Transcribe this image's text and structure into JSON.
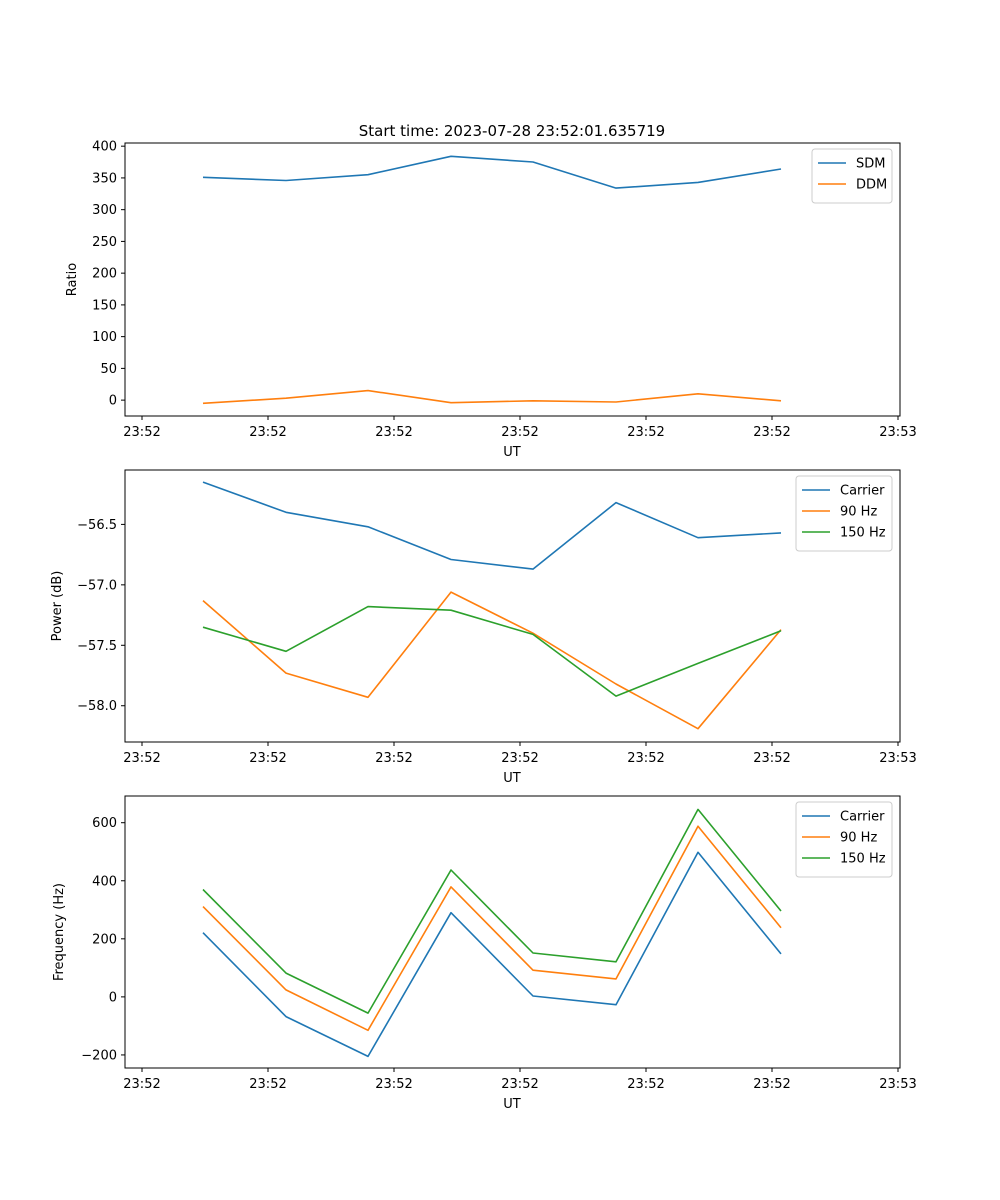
{
  "figure": {
    "title": "Start time: 2023-07-28 23:52:01.635719"
  },
  "colors": {
    "blue": "#1f77b4",
    "orange": "#ff7f0e",
    "green": "#2ca02c"
  },
  "chart_data": [
    {
      "type": "line",
      "xlabel": "UT",
      "ylabel": "Ratio",
      "x": [
        1,
        2,
        3,
        4,
        5,
        6,
        7,
        8
      ],
      "xlim": [
        0.8,
        9.02
      ],
      "x_ticks": [
        1.0,
        2.5,
        4.0,
        5.5,
        7.0,
        8.5,
        10.0
      ],
      "x_tick_positions": [
        0.8,
        2.55,
        4.05,
        5.55,
        7.05,
        8.55,
        9.0
      ],
      "x_tick_labels": [
        "23:52",
        "23:52",
        "23:52",
        "23:52",
        "23:52",
        "23:52",
        "23:53"
      ],
      "ylim": [
        -25,
        405
      ],
      "y_ticks": [
        0,
        50,
        100,
        150,
        200,
        250,
        300,
        350,
        400
      ],
      "y_tick_labels": [
        "0",
        "50",
        "100",
        "150",
        "200",
        "250",
        "300",
        "350",
        "400"
      ],
      "legend_position": "top-right",
      "series": [
        {
          "name": "SDM",
          "color": "#1f77b4",
          "values": [
            351,
            346,
            355,
            384,
            375,
            334,
            343,
            364
          ]
        },
        {
          "name": "DDM",
          "color": "#ff7f0e",
          "values": [
            -5,
            3,
            15,
            -4,
            -1,
            -3,
            10,
            -1
          ]
        }
      ]
    },
    {
      "type": "line",
      "xlabel": "UT",
      "ylabel": "Power (dB)",
      "x": [
        1,
        2,
        3,
        4,
        5,
        6,
        7,
        8
      ],
      "xlim": [
        0.8,
        9.02
      ],
      "x_ticks": [
        0.8,
        2.55,
        4.05,
        5.55,
        7.05,
        8.55,
        9.0
      ],
      "x_tick_labels": [
        "23:52",
        "23:52",
        "23:52",
        "23:52",
        "23:52",
        "23:52",
        "23:53"
      ],
      "ylim": [
        -58.3,
        -56.05
      ],
      "y_ticks": [
        -58.0,
        -57.5,
        -57.0,
        -56.5
      ],
      "y_tick_labels": [
        "−58.0",
        "−57.5",
        "−57.0",
        "−56.5"
      ],
      "legend_position": "top-right",
      "series": [
        {
          "name": "Carrier",
          "color": "#1f77b4",
          "values": [
            -56.15,
            -56.4,
            -56.52,
            -56.79,
            -56.87,
            -56.32,
            -56.61,
            -56.57
          ]
        },
        {
          "name": "90 Hz",
          "color": "#ff7f0e",
          "values": [
            -57.13,
            -57.73,
            -57.93,
            -57.06,
            -57.4,
            -57.82,
            -58.19,
            -57.37
          ]
        },
        {
          "name": "150 Hz",
          "color": "#2ca02c",
          "values": [
            -57.35,
            -57.55,
            -57.18,
            -57.21,
            -57.41,
            -57.92,
            -57.65,
            -57.38
          ]
        }
      ]
    },
    {
      "type": "line",
      "xlabel": "UT",
      "ylabel": "Frequency (Hz)",
      "x": [
        1,
        2,
        3,
        4,
        5,
        6,
        7,
        8
      ],
      "xlim": [
        0.8,
        9.02
      ],
      "x_ticks": [
        0.8,
        2.55,
        4.05,
        5.55,
        7.05,
        8.55,
        9.0
      ],
      "x_tick_labels": [
        "23:52",
        "23:52",
        "23:52",
        "23:52",
        "23:52",
        "23:52",
        "23:53"
      ],
      "ylim": [
        -245,
        692
      ],
      "y_ticks": [
        -200,
        0,
        200,
        400,
        600
      ],
      "y_tick_labels": [
        "−200",
        "0",
        "200",
        "400",
        "600"
      ],
      "legend_position": "top-right",
      "series": [
        {
          "name": "Carrier",
          "color": "#1f77b4",
          "values": [
            221,
            -68,
            -205,
            290,
            3,
            -27,
            498,
            148
          ]
        },
        {
          "name": "90 Hz",
          "color": "#ff7f0e",
          "values": [
            311,
            24,
            -115,
            379,
            92,
            62,
            588,
            238
          ]
        },
        {
          "name": "150 Hz",
          "color": "#2ca02c",
          "values": [
            370,
            82,
            -56,
            437,
            151,
            121,
            646,
            296
          ]
        }
      ]
    }
  ]
}
